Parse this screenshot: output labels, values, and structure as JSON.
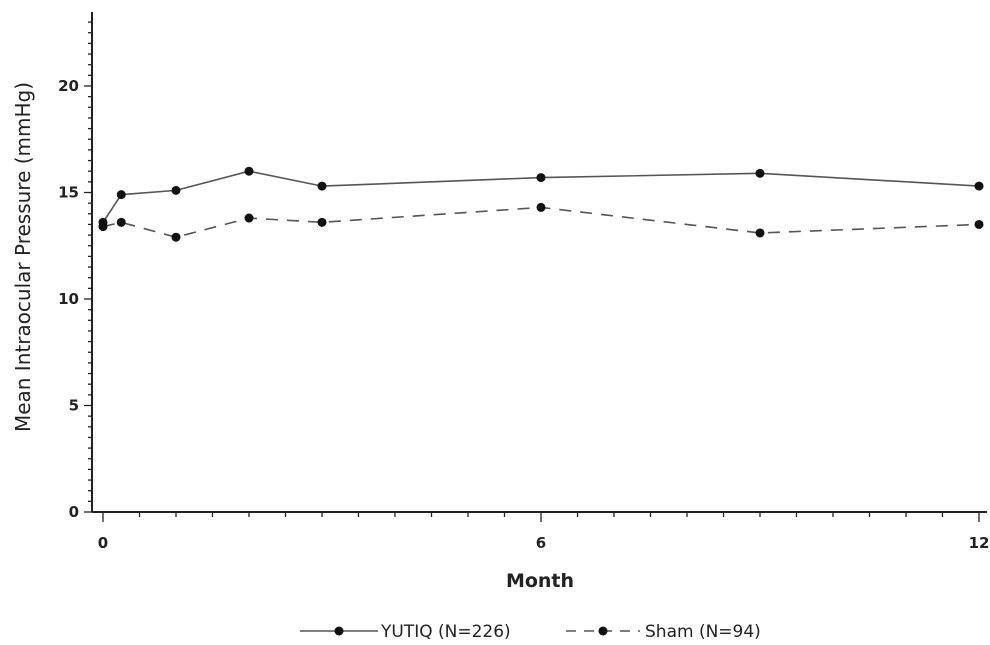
{
  "chart_data": {
    "type": "line",
    "title": "",
    "xlabel": "Month",
    "ylabel": "Mean Intraocular Pressure (mmHg)",
    "xlim": [
      0,
      12
    ],
    "ylim": [
      0,
      23
    ],
    "xticks": [
      0,
      6,
      12
    ],
    "xtick_labels": [
      "0",
      "6",
      "12"
    ],
    "yticks": [
      0,
      5,
      10,
      15,
      20
    ],
    "ytick_labels": [
      "0",
      "5",
      "10",
      "15",
      "20"
    ],
    "grid": false,
    "legend_position": "bottom",
    "series": [
      {
        "name": "YUTIQ (N=226)",
        "line_style": "solid",
        "color": "#555555",
        "x": [
          0,
          0.25,
          1,
          2,
          3,
          6,
          9,
          12
        ],
        "y": [
          13.6,
          14.9,
          15.1,
          16.0,
          15.3,
          15.7,
          15.9,
          15.3
        ]
      },
      {
        "name": "Sham (N=94)",
        "line_style": "dashed",
        "color": "#555555",
        "x": [
          0,
          0.25,
          1,
          2,
          3,
          6,
          9,
          12
        ],
        "y": [
          13.4,
          13.6,
          12.9,
          13.8,
          13.6,
          14.3,
          13.1,
          13.5
        ]
      }
    ]
  }
}
